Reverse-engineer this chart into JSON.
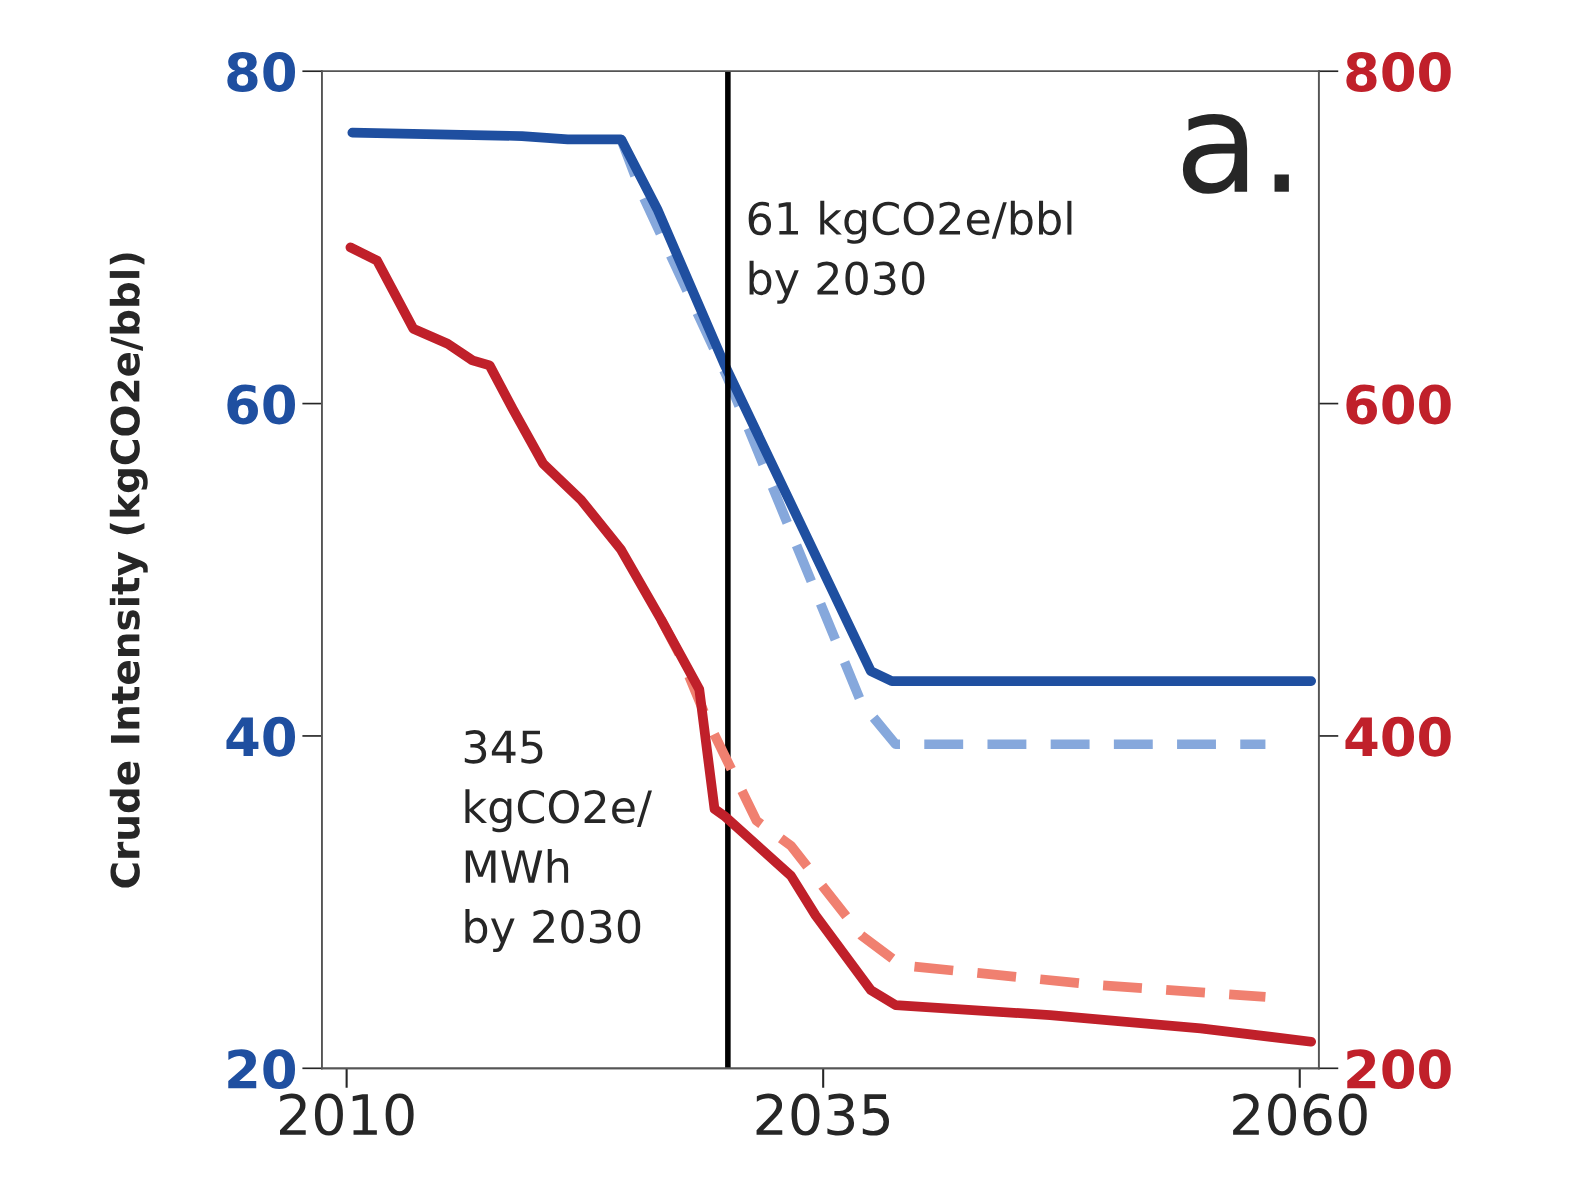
{
  "chart_data": {
    "type": "line",
    "ylabel": "Crude Intensity (kgCO2e/bbl)",
    "xlim": [
      2008.7,
      2061
    ],
    "xticks": [
      2010,
      2035,
      2060
    ],
    "ylim": [
      20,
      80
    ],
    "yticks": [
      20,
      40,
      60,
      80
    ],
    "y2lim": [
      200,
      800
    ],
    "y2ticks": [
      200,
      400,
      600,
      800
    ],
    "series": [
      {
        "color": "#86a8dc",
        "line_style": "dashed",
        "x": [
          2024.4,
          2025.5,
          2030,
          2037,
          2038.8,
          2058.2
        ],
        "values": [
          75.9,
          72.6,
          61.5,
          42,
          39.5,
          39.5
        ]
      },
      {
        "color": "#1f4fa0",
        "line_style": "solid",
        "x": [
          2010.3,
          2019.2,
          2021.6,
          2024.4,
          2026.3,
          2029.8,
          2037.5,
          2038.6,
          2060.6
        ],
        "values": [
          76.3,
          76.1,
          75.9,
          75.9,
          71.7,
          62.4,
          43.9,
          43.3,
          43.3
        ]
      },
      {
        "color": "#f08070",
        "line_style": "dashed",
        "axis": "y2",
        "x": [
          2026.5,
          2027.6,
          2028.9,
          2031.5,
          2033.3,
          2037,
          2039.1,
          2049.5,
          2058.2
        ],
        "values": [
          470,
          446,
          410,
          349,
          334,
          280,
          262,
          250,
          243
        ]
      },
      {
        "color": "#c0202a",
        "line_style": "solid",
        "axis": "y2",
        "x": [
          2010.2,
          2011.6,
          2013.5,
          2015.3,
          2016.6,
          2017.5,
          2018.7,
          2020.3,
          2022.3,
          2024.4,
          2026.5,
          2028.5,
          2029.3,
          2029.8,
          2033.3,
          2034.6,
          2037.5,
          2038.8,
          2046.9,
          2054.8,
          2060.6
        ],
        "values": [
          694,
          686,
          645,
          636,
          626,
          623,
          597,
          564,
          542,
          512,
          470,
          428,
          356,
          352,
          316,
          292,
          247,
          238,
          232,
          224,
          216
        ]
      }
    ],
    "ref_lines": [
      {
        "axis": "x",
        "value": 2030,
        "color": "#000000"
      }
    ],
    "annotations": [
      "61 kgCO2e/bbl\nby 2030",
      "345\nkgCO2e/\nMWh\nby 2030",
      "a."
    ],
    "grid": false,
    "legend": false
  }
}
